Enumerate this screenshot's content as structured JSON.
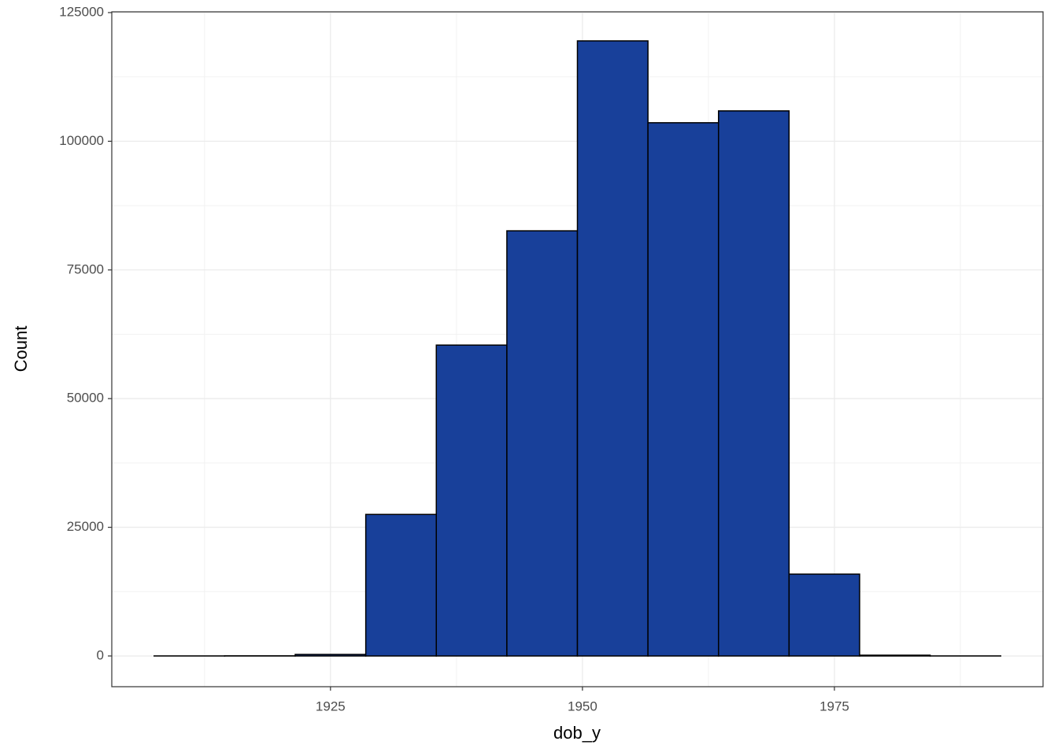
{
  "chart_data": {
    "type": "histogram",
    "x_label": "dob_y",
    "y_label": "Count",
    "bins": [
      1907.5,
      1914.5,
      1921.5,
      1928.5,
      1935.5,
      1942.5,
      1949.5,
      1956.5,
      1963.5,
      1970.5,
      1977.5,
      1984.5,
      1991.5
    ],
    "values": [
      10,
      30,
      300,
      27500,
      60400,
      82600,
      119500,
      103600,
      105900,
      15900,
      150,
      10
    ],
    "color": "#18409a",
    "edge_color": "#000000",
    "xlim": [
      1903.3,
      1995.7
    ],
    "ylim": [
      -5970,
      125150
    ],
    "xticks": [
      1925,
      1950,
      1975
    ],
    "yticks": [
      0,
      25000,
      50000,
      75000,
      100000,
      125000
    ],
    "grid": true,
    "minor_grid": true
  }
}
